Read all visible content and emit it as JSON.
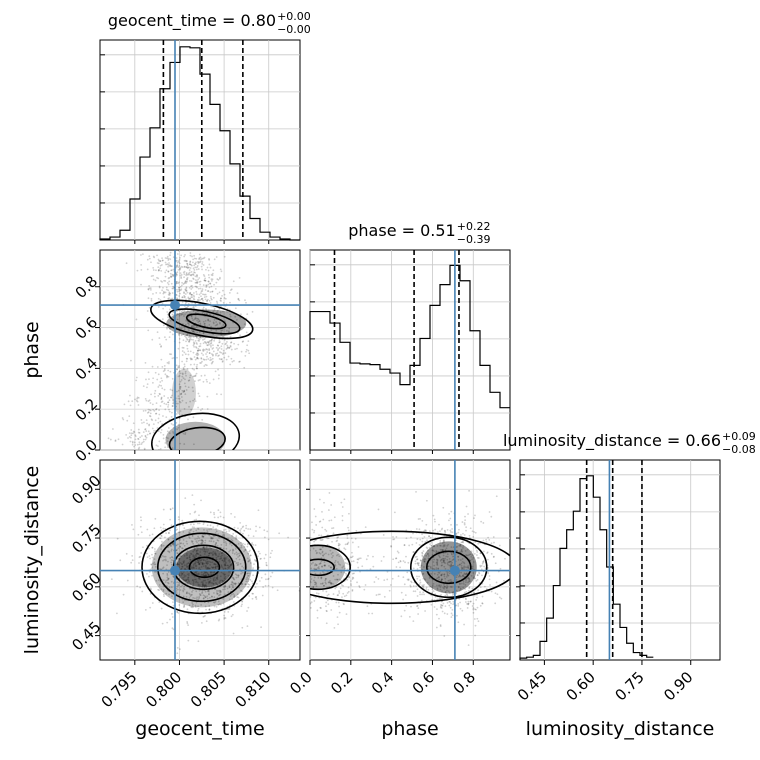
{
  "chart_data": {
    "type": "corner",
    "parameters": [
      "geocent_time",
      "phase",
      "luminosity_distance"
    ],
    "truths": {
      "geocent_time": 0.7995,
      "phase": 0.71,
      "luminosity_distance": 0.65
    },
    "truth_color": "#4682b4",
    "grid": true,
    "titles": [
      {
        "text": "geocent_time = 0.80",
        "sup": "+0.00",
        "sub": "−0.00"
      },
      {
        "text": "phase = 0.51",
        "sup": "+0.22",
        "sub": "−0.39"
      },
      {
        "text": "luminosity_distance = 0.66",
        "sup": "+0.09",
        "sub": "−0.08"
      }
    ],
    "axes": {
      "geocent_time": {
        "xlabel": "geocent_time",
        "range": [
          0.7911,
          0.8135
        ],
        "ticks": [
          0.795,
          0.8,
          0.805,
          0.81
        ],
        "tick_labels": [
          "0.795",
          "0.800",
          "0.805",
          "0.810"
        ]
      },
      "phase": {
        "xlabel": "phase",
        "ylabel": "phase",
        "range": [
          0.0,
          0.98
        ],
        "ticks": [
          0.0,
          0.2,
          0.4,
          0.6,
          0.8
        ],
        "tick_labels": [
          "0.0",
          "0.2",
          "0.4",
          "0.6",
          "0.8"
        ]
      },
      "luminosity_distance": {
        "xlabel": "luminosity_distance",
        "ylabel": "luminosity_distance",
        "range": [
          0.375,
          0.99
        ],
        "ticks": [
          0.45,
          0.6,
          0.75,
          0.9
        ],
        "tick_labels": [
          "0.45",
          "0.60",
          "0.75",
          "0.90"
        ]
      }
    },
    "histograms": {
      "geocent_time": {
        "x_start": 0.7911,
        "bin_width": 0.00112,
        "heights": [
          1,
          3,
          10,
          42,
          85,
          115,
          155,
          182,
          198,
          197,
          170,
          139,
          112,
          78,
          45,
          22,
          8,
          3,
          1,
          0
        ],
        "quantiles": [
          0.7982,
          0.8025,
          0.8071
        ],
        "ymax": 205
      },
      "phase": {
        "x_start": 0.0,
        "bin_width": 0.049,
        "heights": [
          180,
          180,
          165,
          140,
          113,
          112,
          111,
          105,
          100,
          85,
          110,
          145,
          188,
          215,
          240,
          220,
          155,
          110,
          75,
          55
        ],
        "quantiles": [
          0.12,
          0.51,
          0.73
        ],
        "ymax": 260
      },
      "luminosity_distance": {
        "x_start": 0.375,
        "bin_width": 0.0205,
        "heights": [
          2,
          3,
          5,
          20,
          45,
          80,
          120,
          140,
          160,
          195,
          198,
          175,
          140,
          100,
          60,
          35,
          18,
          8,
          5,
          3
        ],
        "quantiles": [
          0.58,
          0.66,
          0.75
        ],
        "ymax": 215
      }
    }
  }
}
